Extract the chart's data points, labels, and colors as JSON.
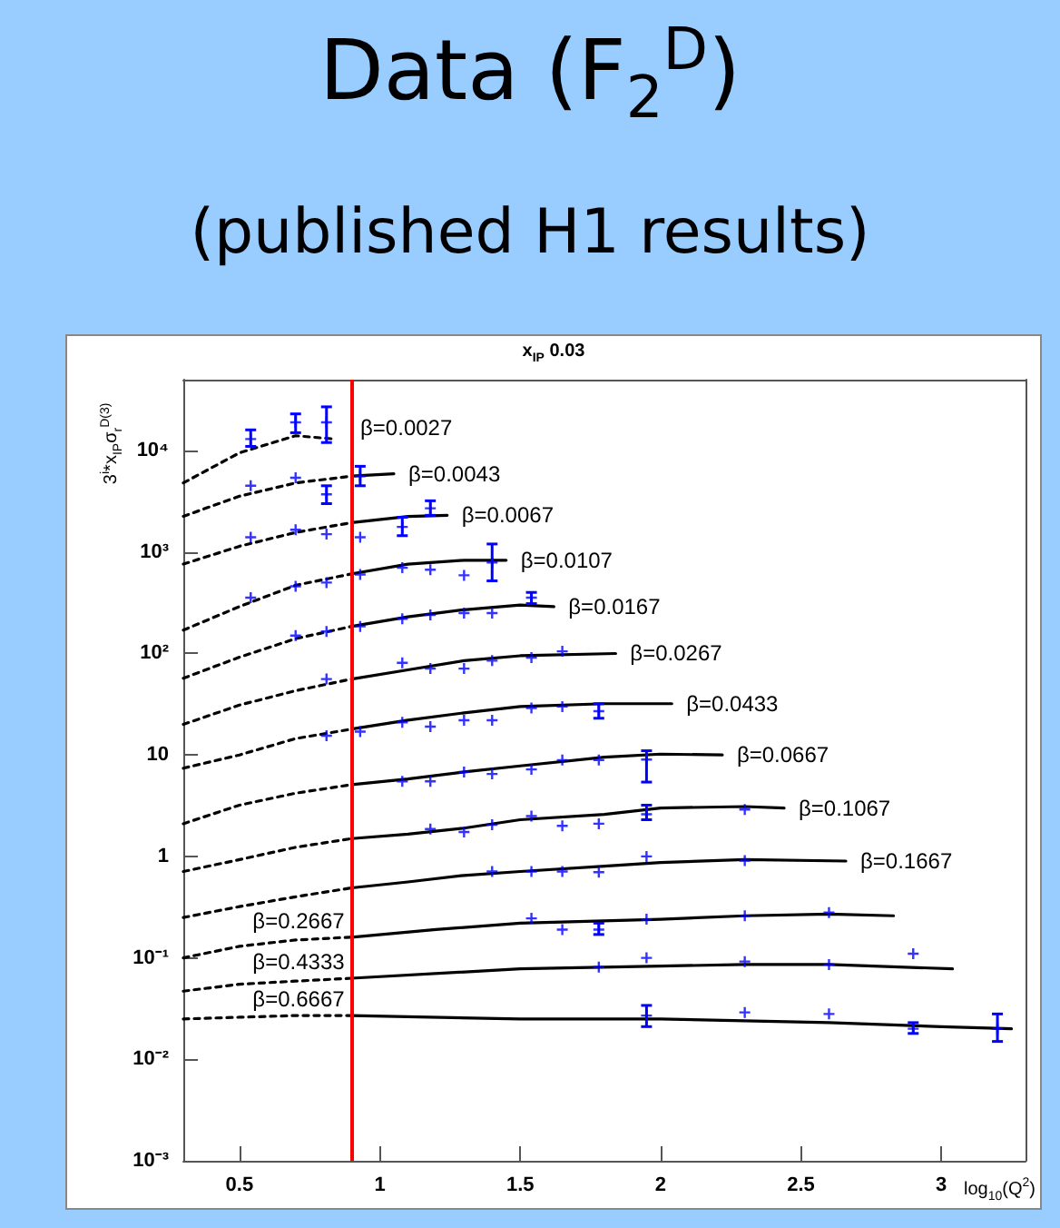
{
  "chart_data": {
    "type": "line",
    "title": "Data (F$_{2}$$^{D}$)",
    "subtitle": "(published H1 results)",
    "xlabel": "log$_{10}$(Q$^{2}$)",
    "ylabel": "3$^{i}$*x$_{IP}$σ$_{r}$$^{D(3)}$",
    "annotations": [
      "x$_{IP}$ 0.03"
    ],
    "xlim": [
      0.3,
      3.3
    ],
    "xticks": [
      0.5,
      1,
      1.5,
      2,
      2.5,
      3
    ],
    "ylim": [
      0.001,
      50000
    ],
    "yticks": [
      {
        "value": 0.001,
        "label": "10⁻³"
      },
      {
        "value": 0.01,
        "label": "10⁻²"
      },
      {
        "value": 0.1,
        "label": "10⁻¹"
      },
      1,
      10,
      {
        "value": 100,
        "label": "10²"
      },
      {
        "value": 1000,
        "label": "10³"
      },
      {
        "value": 10000,
        "label": "10⁴"
      }
    ],
    "log": "y",
    "grid": false,
    "ref_lines": [
      {
        "axis": "x",
        "value": 0.9,
        "color": "#ff0000"
      }
    ],
    "series": [
      {
        "name": "β=0.0027",
        "line_style": "dashed",
        "color": "#000000",
        "x": [
          0.3,
          0.5,
          0.7,
          0.84
        ],
        "values": [
          4800,
          9500,
          14000,
          13000
        ]
      },
      {
        "line_style": "dashed",
        "color": "#000000",
        "x": [
          0.3,
          0.5,
          0.7,
          0.9
        ],
        "values": [
          2250,
          3550,
          4800,
          5600
        ]
      },
      {
        "name": "β=0.0043",
        "line_style": "solid",
        "color": "#000000",
        "x": [
          0.9,
          1.05
        ],
        "values": [
          5600,
          5900
        ]
      },
      {
        "line_style": "dashed",
        "color": "#000000",
        "x": [
          0.3,
          0.5,
          0.7,
          0.9
        ],
        "values": [
          760,
          1140,
          1560,
          1950
        ]
      },
      {
        "name": "β=0.0067",
        "line_style": "solid",
        "color": "#000000",
        "x": [
          0.9,
          1.1,
          1.24
        ],
        "values": [
          1950,
          2240,
          2300
        ]
      },
      {
        "line_style": "dashed",
        "color": "#000000",
        "x": [
          0.3,
          0.5,
          0.7,
          0.9
        ],
        "values": [
          170,
          290,
          470,
          610
        ]
      },
      {
        "name": "β=0.0107",
        "line_style": "solid",
        "color": "#000000",
        "x": [
          0.9,
          1.1,
          1.3,
          1.45
        ],
        "values": [
          610,
          760,
          830,
          830
        ]
      },
      {
        "line_style": "dashed",
        "color": "#000000",
        "x": [
          0.3,
          0.5,
          0.7,
          0.9
        ],
        "values": [
          57,
          92,
          140,
          185
        ]
      },
      {
        "name": "β=0.0167",
        "line_style": "solid",
        "color": "#000000",
        "x": [
          0.9,
          1.1,
          1.3,
          1.5,
          1.62
        ],
        "values": [
          185,
          230,
          270,
          300,
          290
        ]
      },
      {
        "line_style": "dashed",
        "color": "#000000",
        "x": [
          0.3,
          0.5,
          0.7,
          0.9
        ],
        "values": [
          20,
          31,
          43,
          56
        ]
      },
      {
        "name": "β=0.0267",
        "line_style": "solid",
        "color": "#000000",
        "x": [
          0.9,
          1.1,
          1.3,
          1.5,
          1.84
        ],
        "values": [
          56,
          69,
          85,
          95,
          100
        ]
      },
      {
        "line_style": "dashed",
        "color": "#000000",
        "x": [
          0.3,
          0.5,
          0.7,
          0.9
        ],
        "values": [
          7.4,
          10,
          14.5,
          18
        ]
      },
      {
        "name": "β=0.0433",
        "line_style": "solid",
        "color": "#000000",
        "x": [
          0.9,
          1.1,
          1.3,
          1.5,
          1.8,
          2.04
        ],
        "values": [
          18,
          22,
          26,
          30,
          32,
          32
        ]
      },
      {
        "line_style": "dashed",
        "color": "#000000",
        "x": [
          0.3,
          0.5,
          0.7,
          0.9
        ],
        "values": [
          2.1,
          3.2,
          4.2,
          5.1
        ]
      },
      {
        "name": "β=0.0667",
        "line_style": "solid",
        "color": "#000000",
        "x": [
          0.9,
          1.1,
          1.3,
          1.5,
          1.8,
          2.0,
          2.22
        ],
        "values": [
          5.1,
          5.8,
          6.8,
          7.8,
          9.5,
          10.2,
          10
        ]
      },
      {
        "line_style": "dashed",
        "color": "#000000",
        "x": [
          0.3,
          0.5,
          0.7,
          0.9
        ],
        "values": [
          0.71,
          0.93,
          1.23,
          1.5
        ]
      },
      {
        "name": "β=0.1067",
        "line_style": "solid",
        "color": "#000000",
        "x": [
          0.9,
          1.1,
          1.3,
          1.5,
          1.8,
          2.0,
          2.3,
          2.44
        ],
        "values": [
          1.5,
          1.66,
          1.9,
          2.3,
          2.6,
          3.0,
          3.1,
          3.0
        ]
      },
      {
        "line_style": "dashed",
        "color": "#000000",
        "x": [
          0.3,
          0.5,
          0.7,
          0.9
        ],
        "values": [
          0.25,
          0.32,
          0.4,
          0.49
        ]
      },
      {
        "name": "β=0.1667",
        "line_style": "solid",
        "color": "#000000",
        "x": [
          0.9,
          1.1,
          1.3,
          1.5,
          1.8,
          2.0,
          2.3,
          2.66
        ],
        "values": [
          0.49,
          0.56,
          0.65,
          0.71,
          0.8,
          0.87,
          0.93,
          0.9
        ]
      },
      {
        "name": "β=0.2667",
        "line_style": "dashed",
        "color": "#000000",
        "x": [
          0.3,
          0.5,
          0.7,
          0.9
        ],
        "values": [
          0.1,
          0.13,
          0.15,
          0.16
        ]
      },
      {
        "line_style": "solid",
        "color": "#000000",
        "x": [
          0.9,
          1.2,
          1.5,
          2.0,
          2.3,
          2.6,
          2.83
        ],
        "values": [
          0.16,
          0.19,
          0.22,
          0.24,
          0.26,
          0.27,
          0.26
        ]
      },
      {
        "name": "β=0.4333",
        "line_style": "dashed",
        "color": "#000000",
        "x": [
          0.3,
          0.5,
          0.7,
          0.9
        ],
        "values": [
          0.047,
          0.055,
          0.059,
          0.063
        ]
      },
      {
        "line_style": "solid",
        "color": "#000000",
        "x": [
          0.9,
          1.5,
          2.0,
          2.3,
          2.6,
          3.04
        ],
        "values": [
          0.063,
          0.078,
          0.083,
          0.086,
          0.086,
          0.078
        ]
      },
      {
        "name": "β=0.6667",
        "line_style": "dashed",
        "color": "#000000",
        "x": [
          0.3,
          0.5,
          0.7,
          0.9
        ],
        "values": [
          0.025,
          0.026,
          0.027,
          0.027
        ]
      },
      {
        "line_style": "solid",
        "color": "#000000",
        "x": [
          0.9,
          1.5,
          2.0,
          2.6,
          3.0,
          3.25
        ],
        "values": [
          0.027,
          0.025,
          0.025,
          0.023,
          0.021,
          0.02
        ]
      },
      {
        "type": "scatter",
        "marker": "cross",
        "color": "#0000ff",
        "x": [
          0.54,
          0.7,
          0.81,
          0.54,
          0.7,
          0.81,
          0.93,
          0.54,
          0.7,
          0.81,
          0.93,
          1.08,
          1.18,
          0.54,
          0.7,
          0.81,
          0.93,
          1.08,
          1.18,
          1.3,
          1.4,
          0.7,
          0.81,
          0.93,
          1.08,
          1.18,
          1.3,
          1.4,
          1.54,
          0.81,
          1.08,
          1.18,
          1.3,
          1.4,
          1.54,
          1.65,
          0.81,
          0.93,
          1.08,
          1.18,
          1.3,
          1.4,
          1.54,
          1.65,
          1.78,
          1.08,
          1.18,
          1.3,
          1.4,
          1.54,
          1.65,
          1.78,
          1.95,
          1.18,
          1.3,
          1.4,
          1.54,
          1.65,
          1.78,
          1.95,
          2.3,
          1.4,
          1.54,
          1.65,
          1.78,
          1.95,
          2.3,
          1.54,
          1.65,
          1.78,
          1.95,
          2.3,
          2.6,
          1.78,
          1.95,
          2.3,
          2.6,
          2.9,
          1.95,
          2.3,
          2.6,
          2.9,
          3.2
        ],
        "values": [
          13000,
          19000,
          19000,
          4500,
          5400,
          3700,
          5600,
          1400,
          1660,
          1500,
          1400,
          1770,
          2700,
          355,
          460,
          500,
          600,
          700,
          670,
          590,
          790,
          150,
          165,
          185,
          220,
          240,
          250,
          250,
          355,
          56,
          81,
          71,
          71,
          85,
          91,
          105,
          15.5,
          17,
          21,
          19,
          22,
          22,
          29,
          30,
          27,
          5.5,
          5.5,
          6.8,
          6.5,
          7.2,
          8.9,
          8.9,
          9,
          1.86,
          1.74,
          2.05,
          2.5,
          2.0,
          2.1,
          2.6,
          2.9,
          0.71,
          0.71,
          0.71,
          0.7,
          1.0,
          0.91,
          0.245,
          0.19,
          0.19,
          0.24,
          0.26,
          0.28,
          0.081,
          0.1,
          0.092,
          0.086,
          0.11,
          0.027,
          0.029,
          0.028,
          0.02,
          0.02
        ],
        "errors": [
          [
            11000,
            16000
          ],
          [
            15000,
            23000
          ],
          [
            12000,
            27000
          ],
          null,
          null,
          [
            3000,
            4500
          ],
          [
            4500,
            7000
          ],
          null,
          null,
          null,
          null,
          [
            1450,
            2200
          ],
          [
            2300,
            3200
          ],
          null,
          null,
          null,
          null,
          null,
          null,
          null,
          [
            520,
            1200
          ],
          null,
          null,
          null,
          null,
          null,
          null,
          null,
          [
            310,
            400
          ],
          null,
          null,
          null,
          null,
          null,
          null,
          null,
          null,
          null,
          null,
          null,
          null,
          null,
          null,
          null,
          [
            23,
            32
          ],
          null,
          null,
          null,
          null,
          null,
          null,
          null,
          [
            5.4,
            11
          ],
          null,
          null,
          null,
          null,
          null,
          null,
          [
            2.3,
            3.2
          ],
          null,
          null,
          null,
          null,
          null,
          null,
          null,
          null,
          null,
          [
            0.17,
            0.22
          ],
          null,
          null,
          null,
          null,
          null,
          null,
          null,
          null,
          [
            0.021,
            0.034
          ],
          null,
          null,
          [
            0.018,
            0.023
          ],
          [
            0.015,
            0.028
          ]
        ]
      }
    ]
  }
}
